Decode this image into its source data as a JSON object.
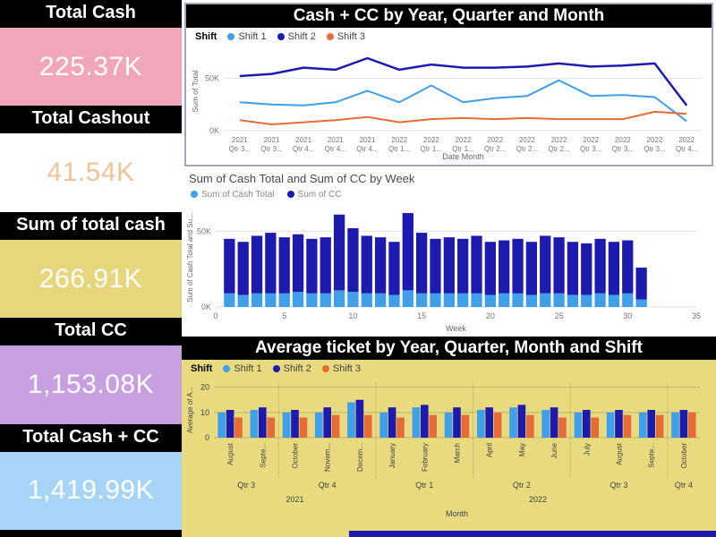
{
  "cards": [
    {
      "title": "Total Cash",
      "value": "225.37K",
      "bg": "#f2a6ba",
      "fg": "#ffffff"
    },
    {
      "title": "Total Cashout",
      "value": "41.54K",
      "bg": "#ffffff",
      "fg": "#f0c29a"
    },
    {
      "title": "Sum of total cash",
      "value": "266.91K",
      "bg": "#e6d77c",
      "fg": "#ffffff"
    },
    {
      "title": "Total CC",
      "value": "1,153.08K",
      "bg": "#c8a0e0",
      "fg": "#ffffff"
    },
    {
      "title": "Total Cash + CC",
      "value": "1,419.99K",
      "bg": "#a8d5f7",
      "fg": "#ffffff"
    }
  ],
  "colors": {
    "shift1": "#3f9fe8",
    "shift2": "#1f1aae",
    "shift3": "#e66c37",
    "panel_khaki": "#e8da7f",
    "footer_navy": "#1f1aae",
    "grid": "#e2e2e2",
    "axis_text": "#777777"
  },
  "chart_data": [
    {
      "type": "line",
      "title": "Cash + CC by Year, Quarter and Month",
      "legend_title": "Shift",
      "legend_position": "top-left",
      "xlabel": "Date Month",
      "ylabel": "Sum of Total",
      "units": "K",
      "ylim": [
        0,
        75
      ],
      "yticks": [
        {
          "v": 0,
          "label": "0K"
        },
        {
          "v": 50,
          "label": "50K"
        }
      ],
      "categories": [
        [
          "2021",
          "Qtr 3..."
        ],
        [
          "2021",
          "Qtr 3..."
        ],
        [
          "2021",
          "Qtr 4..."
        ],
        [
          "2021",
          "Qtr 4..."
        ],
        [
          "2021",
          "Qtr 4..."
        ],
        [
          "2022",
          "Qtr 1..."
        ],
        [
          "2022",
          "Qtr 1..."
        ],
        [
          "2022",
          "Qtr 1..."
        ],
        [
          "2022",
          "Qtr 2..."
        ],
        [
          "2022",
          "Qtr 2..."
        ],
        [
          "2022",
          "Qtr 2..."
        ],
        [
          "2022",
          "Qtr 3..."
        ],
        [
          "2022",
          "Qtr 3..."
        ],
        [
          "2022",
          "Qtr 3..."
        ],
        [
          "2022",
          "Qtr 4..."
        ]
      ],
      "series": [
        {
          "name": "Shift 1",
          "color_key": "shift1",
          "values": [
            27,
            25,
            24,
            27,
            38,
            27,
            43,
            27,
            31,
            33,
            48,
            33,
            34,
            32,
            9
          ]
        },
        {
          "name": "Shift 2",
          "color_key": "shift2",
          "values": [
            52,
            54,
            60,
            58,
            69,
            58,
            63,
            60,
            60,
            61,
            64,
            61,
            62,
            64,
            24
          ]
        },
        {
          "name": "Shift 3",
          "color_key": "shift3",
          "values": [
            10,
            6,
            8,
            10,
            13,
            8,
            11,
            12,
            11,
            12,
            11,
            11,
            11,
            18,
            16
          ]
        }
      ]
    },
    {
      "type": "stacked-bar",
      "title": "Sum of Cash Total and Sum of CC by Week",
      "legend_position": "top-left",
      "xlabel": "Week",
      "ylabel": "Sum of Cash Total and Su...",
      "units": "K",
      "ylim": [
        0,
        65
      ],
      "yticks": [
        {
          "v": 0,
          "label": "0K"
        },
        {
          "v": 50,
          "label": "50K"
        }
      ],
      "x_range": [
        0,
        35
      ],
      "xticks": [
        0,
        5,
        10,
        15,
        20,
        25,
        30,
        35
      ],
      "first_week": 1,
      "series": [
        {
          "name": "Sum of Cash Total",
          "color_key": "shift1",
          "values": [
            9,
            8,
            9,
            9,
            9,
            10,
            9,
            9,
            11,
            10,
            9,
            9,
            8,
            11,
            9,
            9,
            9,
            9,
            9,
            8,
            9,
            9,
            8,
            9,
            9,
            8,
            8,
            9,
            8,
            9,
            5
          ]
        },
        {
          "name": "Sum of CC",
          "color_key": "shift2",
          "values": [
            36,
            35,
            38,
            40,
            37,
            38,
            36,
            37,
            50,
            42,
            38,
            37,
            35,
            51,
            40,
            36,
            37,
            36,
            38,
            35,
            35,
            36,
            35,
            38,
            37,
            35,
            34,
            36,
            35,
            35,
            21
          ]
        }
      ]
    },
    {
      "type": "grouped-bar",
      "title": "Average ticket by Year, Quarter, Month and Shift",
      "legend_title": "Shift",
      "legend_position": "top-left",
      "xlabel": "Month",
      "ylabel": "Average of A...",
      "ylim": [
        0,
        22
      ],
      "yticks": [
        {
          "v": 0,
          "label": "0"
        },
        {
          "v": 10,
          "label": "10"
        },
        {
          "v": 20,
          "label": "20"
        }
      ],
      "months": [
        "August",
        "Septe...",
        "October",
        "Novem...",
        "Decem...",
        "January",
        "February",
        "March",
        "April",
        "May",
        "June",
        "July",
        "August",
        "Septe...",
        "October"
      ],
      "quarters": [
        {
          "label": "Qtr 3",
          "span": 2
        },
        {
          "label": "Qtr 4",
          "span": 3
        },
        {
          "label": "Qtr 1",
          "span": 3
        },
        {
          "label": "Qtr 2",
          "span": 3
        },
        {
          "label": "Qtr 3",
          "span": 3
        },
        {
          "label": "Qtr 4",
          "span": 1
        }
      ],
      "years": [
        {
          "label": "2021",
          "span": 5
        },
        {
          "label": "2022",
          "span": 10
        }
      ],
      "series": [
        {
          "name": "Shift 1",
          "color_key": "shift1",
          "values": [
            10,
            11,
            10,
            10,
            14,
            10,
            12,
            10,
            11,
            12,
            11,
            10,
            10,
            10,
            10
          ]
        },
        {
          "name": "Shift 2",
          "color_key": "shift2",
          "values": [
            11,
            12,
            11,
            12,
            15,
            12,
            13,
            12,
            12,
            13,
            12,
            11,
            11,
            11,
            11
          ]
        },
        {
          "name": "Shift 3",
          "color_key": "shift3",
          "values": [
            8,
            8,
            8,
            9,
            9,
            8,
            9,
            9,
            10,
            9,
            8,
            8,
            9,
            9,
            10
          ]
        }
      ]
    }
  ]
}
